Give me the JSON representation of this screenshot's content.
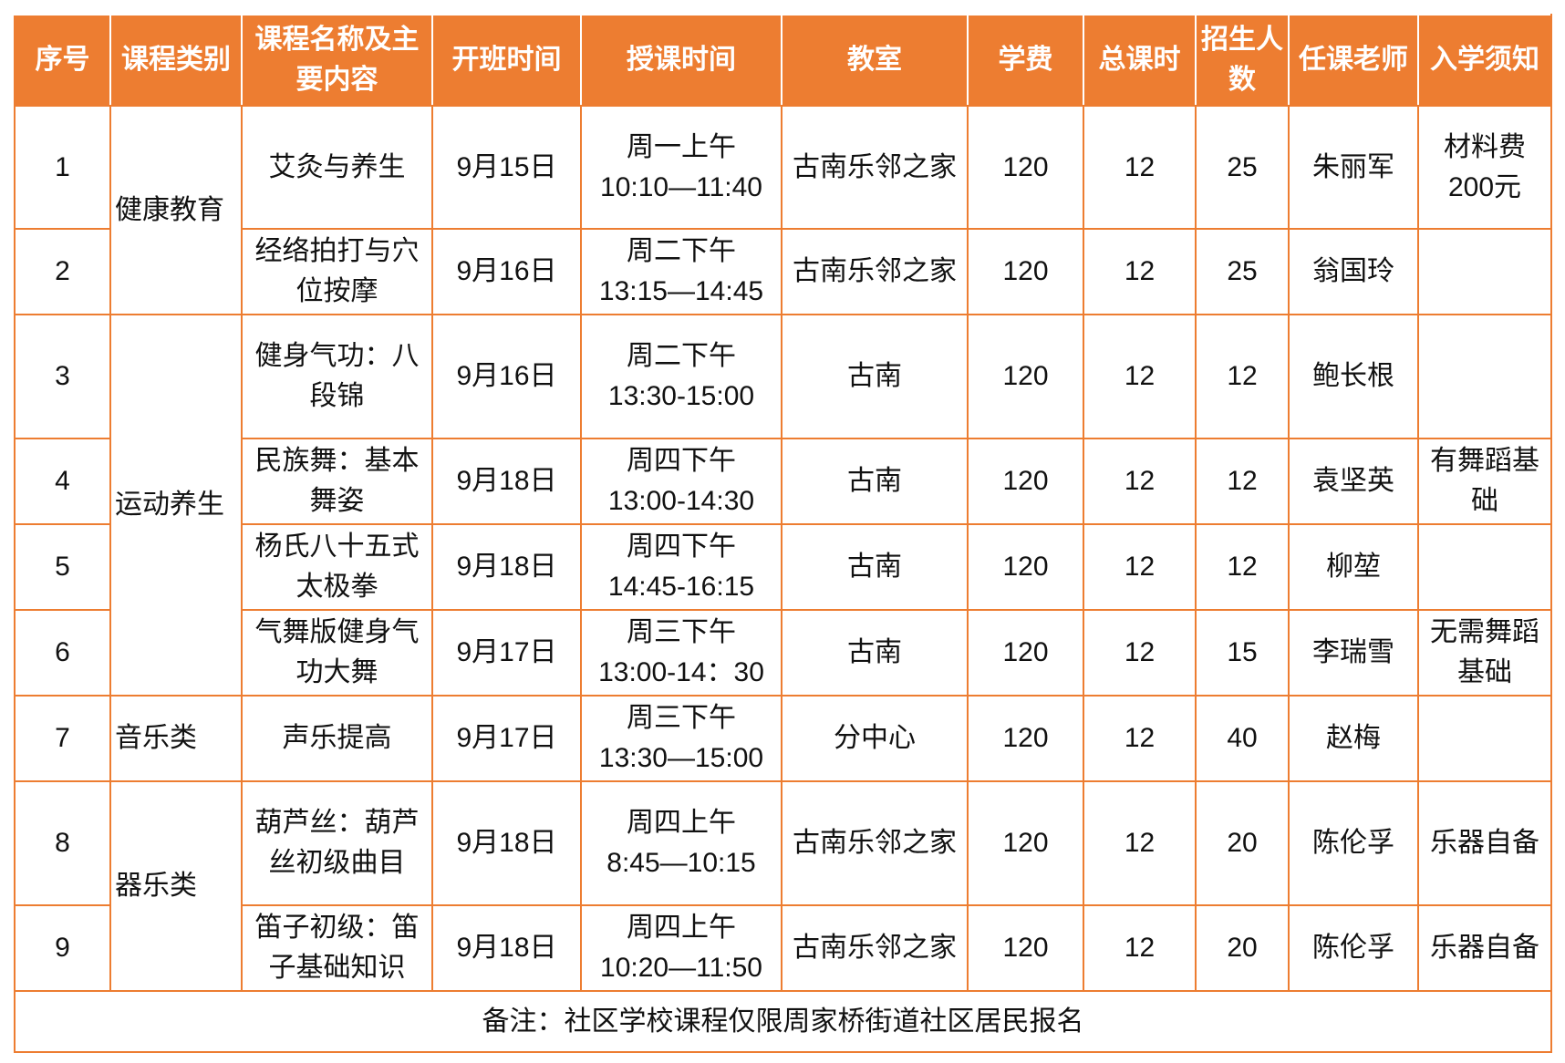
{
  "table": {
    "header": [
      "序号",
      "课程类别",
      "课程名称及主要内容",
      "开班时间",
      "授课时间",
      "教室",
      "学费",
      "总课时",
      "招生人数",
      "任课老师",
      "入学须知"
    ],
    "groups": [
      {
        "category": "健康教育",
        "rows": [
          [
            1,
            "艾灸与养生",
            "9月15日",
            "周一上午\n10:10—11:40",
            "古南乐邻之家",
            120,
            12,
            25,
            "朱丽军",
            "材料费\n200元"
          ],
          [
            2,
            "经络拍打与穴位按摩",
            "9月16日",
            "周二下午\n13:15—14:45",
            "古南乐邻之家",
            120,
            12,
            25,
            "翁国玲",
            null
          ]
        ]
      },
      {
        "category": "运动养生",
        "rows": [
          [
            3,
            "健身气功：八段锦",
            "9月16日",
            "周二下午\n13:30-15:00",
            "古南",
            120,
            12,
            12,
            "鲍长根",
            null
          ],
          [
            4,
            "民族舞：基本舞姿",
            "9月18日",
            "周四下午\n13:00-14:30",
            "古南",
            120,
            12,
            12,
            "袁坚英",
            "有舞蹈基础"
          ],
          [
            5,
            "杨氏八十五式太极拳",
            "9月18日",
            "周四下午\n14:45-16:15",
            "古南",
            120,
            12,
            12,
            "柳堃",
            null
          ],
          [
            6,
            "气舞版健身气功大舞",
            "9月17日",
            "周三下午\n13:00-14：30",
            "古南",
            120,
            12,
            15,
            "李瑞雪",
            "无需舞蹈基础"
          ]
        ]
      },
      {
        "category": "音乐类",
        "rows": [
          [
            7,
            "声乐提高",
            "9月17日",
            "周三下午\n13:30—15:00",
            "分中心",
            120,
            12,
            40,
            "赵梅",
            null
          ]
        ]
      },
      {
        "category": "器乐类",
        "rows": [
          [
            8,
            "葫芦丝：葫芦丝初级曲目",
            "9月18日",
            "周四上午\n8:45—10:15",
            "古南乐邻之家",
            120,
            12,
            20,
            "陈伦孚",
            "乐器自备"
          ],
          [
            9,
            "笛子初级：笛子基础知识",
            "9月18日",
            "周四上午\n10:20—11:50",
            "古南乐邻之家",
            120,
            12,
            20,
            "陈伦孚",
            "乐器自备"
          ]
        ]
      }
    ],
    "note": "备注：社区学校课程仅限周家桥街道社区居民报名"
  }
}
